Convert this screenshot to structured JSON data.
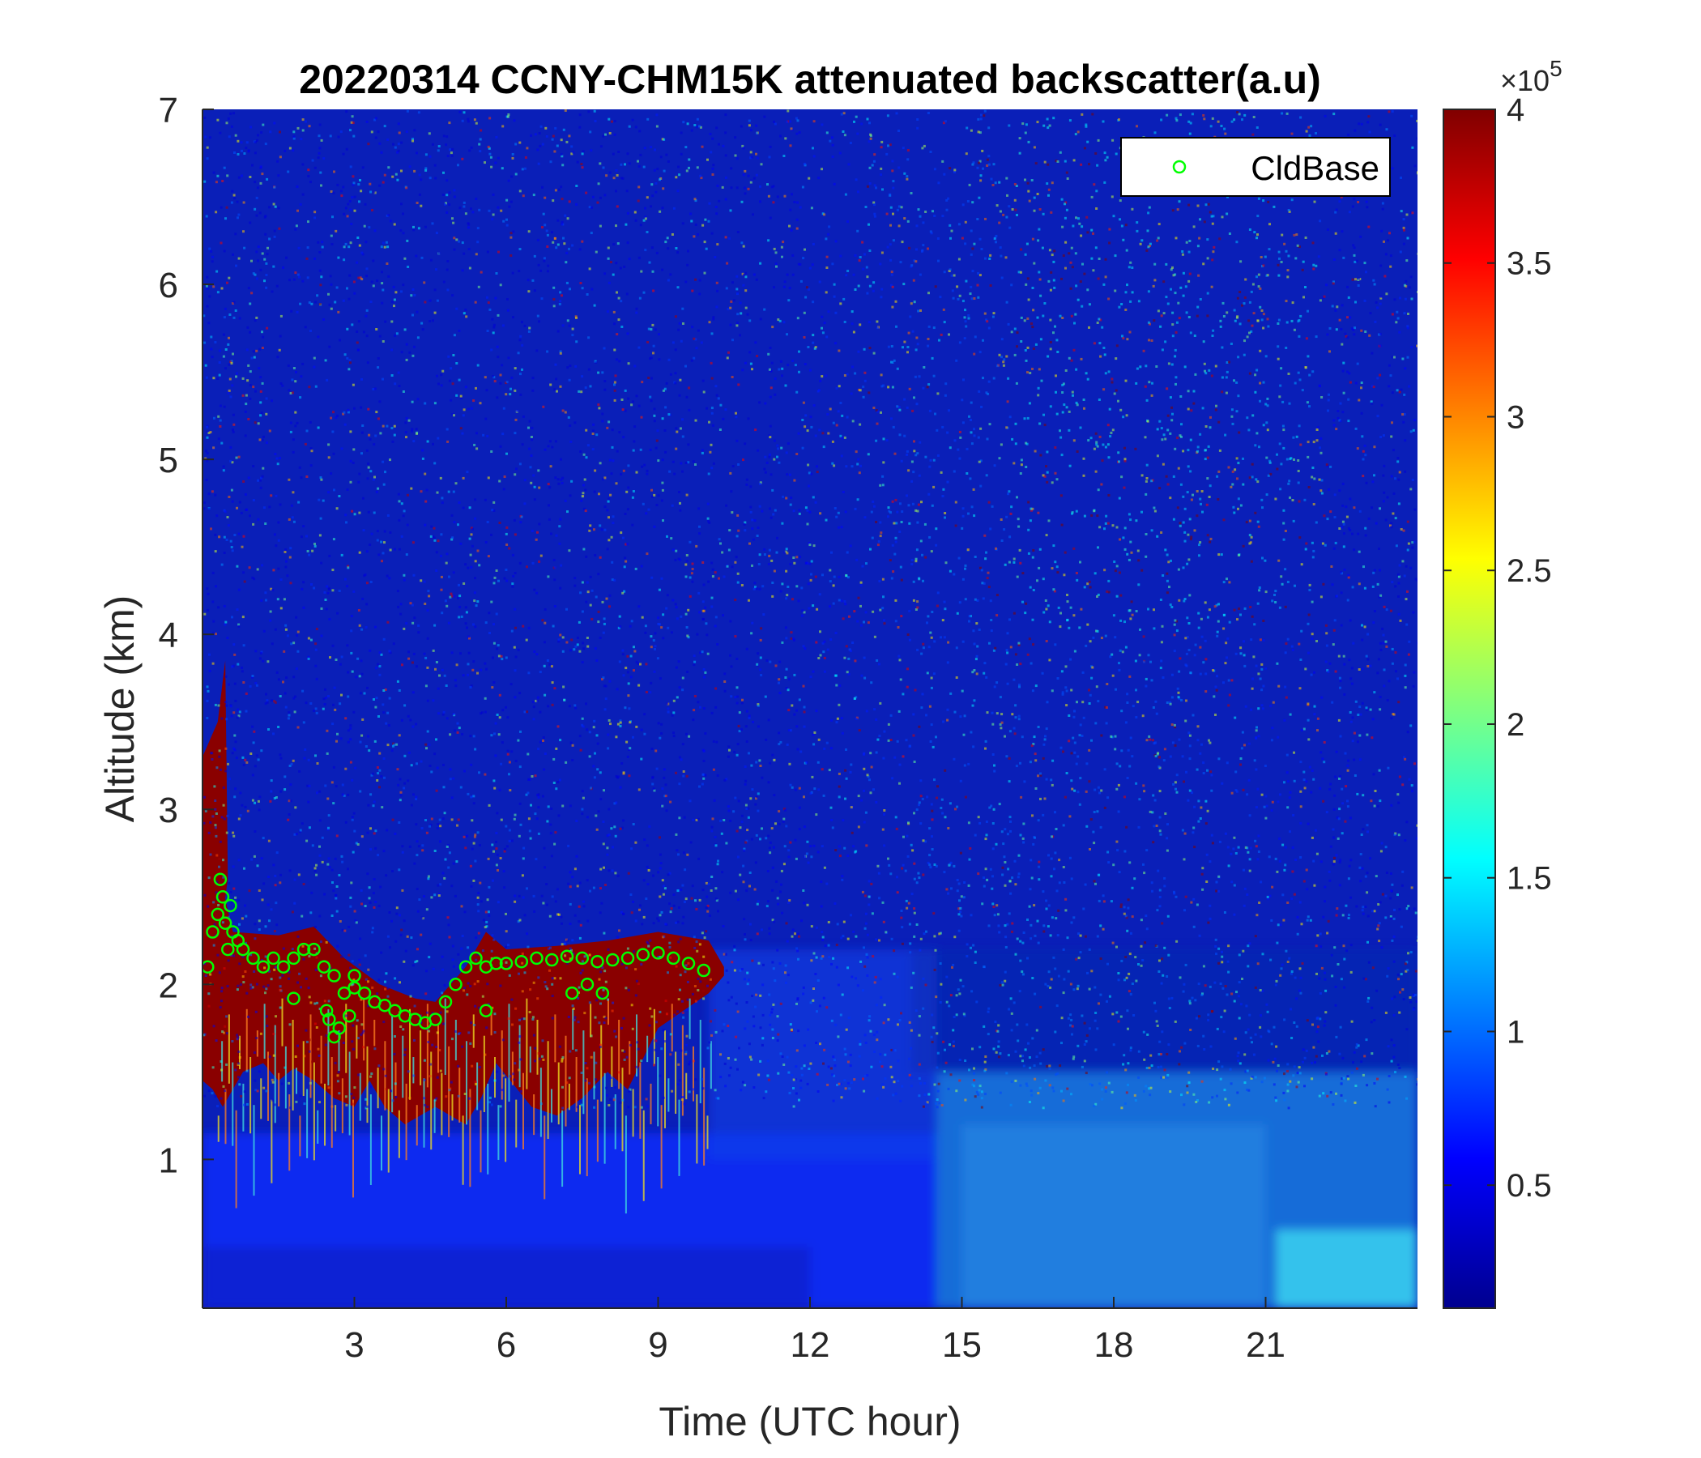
{
  "chart_data": {
    "type": "heatmap",
    "title": "20220314 CCNY-CHM15K attenuated backscatter(a.u)",
    "xlabel": "Time (UTC hour)",
    "ylabel": "Altitude (km)",
    "xlim": [
      0,
      24
    ],
    "ylim": [
      0.15,
      7
    ],
    "xticks": [
      3,
      6,
      9,
      12,
      15,
      18,
      21
    ],
    "yticks": [
      1,
      2,
      3,
      4,
      5,
      6,
      7
    ],
    "grid": false,
    "colormap": "jet",
    "colorbar": {
      "clim": [
        10000,
        400000
      ],
      "ticks": [
        0.5,
        1,
        1.5,
        2,
        2.5,
        3,
        3.5,
        4
      ],
      "exponent_label": "×10",
      "exponent": "5"
    },
    "backscatter_features": [
      {
        "time_range": [
          0,
          10.3
        ],
        "altitude_range": [
          1.2,
          2.3
        ],
        "level": "high (≥4×10^5)",
        "description": "cloud layer"
      },
      {
        "time_range": [
          0,
          0.5
        ],
        "altitude_range": [
          1.3,
          3.8
        ],
        "level": "high",
        "description": "cloud top extension"
      },
      {
        "time_range": [
          0,
          14.5
        ],
        "altitude_range": [
          0.15,
          1.2
        ],
        "level": "low (~0.4×10^5)",
        "description": "boundary layer"
      },
      {
        "time_range": [
          14.5,
          24
        ],
        "altitude_range": [
          0.15,
          1.5
        ],
        "level": "moderate (~1×10^5)",
        "description": "boundary layer aerosol"
      },
      {
        "time_range": [
          21.2,
          24
        ],
        "altitude_range": [
          0.15,
          0.6
        ],
        "level": "moderate-high (~1.5×10^5)",
        "description": "near-surface enhancement"
      },
      {
        "time_range": [
          12,
          24
        ],
        "altitude_range": [
          2,
          7
        ],
        "level": "noisy high",
        "description": "daytime background noise"
      }
    ],
    "series": [
      {
        "name": "CldBase",
        "marker": "circle",
        "color": "#00ff00",
        "x": [
          0.1,
          0.2,
          0.3,
          0.35,
          0.4,
          0.45,
          0.5,
          0.55,
          0.6,
          0.7,
          0.8,
          1.0,
          1.2,
          1.4,
          1.6,
          1.8,
          2.0,
          2.2,
          2.4,
          2.6,
          2.8,
          3.0,
          3.2,
          3.4,
          3.6,
          3.8,
          4.0,
          4.2,
          4.4,
          4.6,
          4.8,
          5.0,
          5.2,
          5.4,
          5.6,
          5.8,
          6.0,
          6.3,
          6.6,
          6.9,
          7.2,
          7.5,
          7.8,
          8.1,
          8.4,
          8.7,
          9.0,
          9.3,
          9.6,
          9.9,
          2.5,
          2.6,
          2.7,
          2.45,
          2.9,
          3.0,
          1.8,
          5.6,
          7.3,
          7.6,
          7.9
        ],
        "y": [
          2.1,
          2.3,
          2.4,
          2.6,
          2.5,
          2.35,
          2.2,
          2.45,
          2.3,
          2.25,
          2.2,
          2.15,
          2.1,
          2.15,
          2.1,
          2.15,
          2.2,
          2.2,
          2.1,
          2.05,
          1.95,
          1.98,
          1.95,
          1.9,
          1.88,
          1.85,
          1.82,
          1.8,
          1.78,
          1.8,
          1.9,
          2.0,
          2.1,
          2.15,
          2.1,
          2.12,
          2.12,
          2.13,
          2.15,
          2.14,
          2.16,
          2.15,
          2.13,
          2.14,
          2.15,
          2.17,
          2.18,
          2.15,
          2.12,
          2.08,
          1.8,
          1.7,
          1.75,
          1.85,
          1.82,
          2.05,
          1.92,
          1.85,
          1.95,
          2.0,
          1.95
        ]
      }
    ],
    "legend": {
      "placement": "top-right",
      "entries": [
        "CldBase"
      ]
    }
  }
}
